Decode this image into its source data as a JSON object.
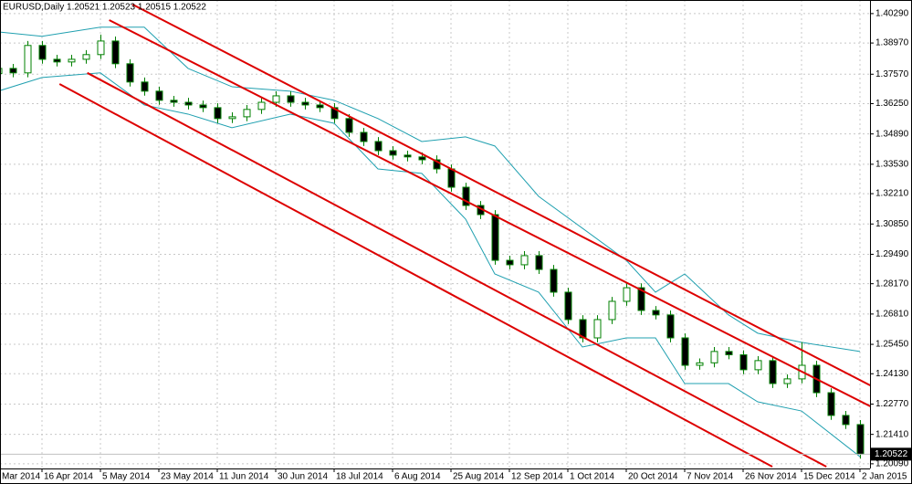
{
  "chart_data": {
    "type": "candlestick",
    "title": "EURUSD,Daily  1.20521 1.20523 1.20515 1.20522",
    "categories": [
      "Mar 2014",
      null,
      null,
      null,
      "16 Apr 2014",
      null,
      null,
      null,
      "5 May 2014",
      null,
      null,
      null,
      "23 May 2014",
      null,
      null,
      null,
      "11 Jun 2014",
      null,
      null,
      null,
      "30 Jun 2014",
      null,
      null,
      null,
      "18 Jul 2014",
      null,
      null,
      null,
      "6 Aug 2014",
      null,
      null,
      null,
      "25 Aug 2014",
      null,
      null,
      null,
      "12 Sep 2014",
      null,
      null,
      null,
      "1 Oct 2014",
      null,
      null,
      null,
      "20 Oct 2014",
      null,
      null,
      null,
      "7 Nov 2014",
      null,
      null,
      null,
      "26 Nov 2014",
      null,
      null,
      null,
      "15 Dec 2014",
      null,
      null,
      null,
      "2 Jan 2015"
    ],
    "open": [
      null,
      1.376,
      1.3783,
      1.3763,
      1.3886,
      1.3824,
      1.3812,
      1.3824,
      1.3845,
      1.3906,
      1.3804,
      1.3722,
      1.3681,
      1.364,
      1.3631,
      1.3619,
      1.3607,
      1.3558,
      1.3566,
      1.3599,
      1.3631,
      1.366,
      1.3631,
      1.3619,
      1.3607,
      1.3558,
      1.3496,
      1.3455,
      1.3414,
      1.3394,
      1.3386,
      1.3373,
      1.3332,
      1.325,
      1.3168,
      1.3127,
      1.2922,
      1.2902,
      1.2943,
      1.2881,
      1.2779,
      1.2656,
      1.2574,
      1.2656,
      1.2738,
      1.2799,
      1.2697,
      1.2677,
      1.2574,
      1.2451,
      1.2462,
      1.2513,
      1.2498,
      1.2431,
      1.2472,
      1.2369,
      1.239,
      1.2451,
      1.2328,
      1.2226,
      1.2185
    ],
    "high": [
      null,
      1.3803,
      1.3803,
      1.3906,
      1.3906,
      1.3844,
      1.3844,
      1.3865,
      1.3935,
      1.3926,
      1.3824,
      1.3742,
      1.3701,
      1.366,
      1.3651,
      1.3639,
      1.3627,
      1.3586,
      1.3619,
      1.3651,
      1.368,
      1.368,
      1.3651,
      1.3639,
      1.3627,
      1.3578,
      1.3516,
      1.3475,
      1.3434,
      1.3414,
      1.3406,
      1.3393,
      1.3352,
      1.327,
      1.3188,
      1.3147,
      1.2942,
      1.2963,
      1.2963,
      1.2901,
      1.2799,
      1.2676,
      1.2676,
      1.2758,
      1.2819,
      1.2819,
      1.2717,
      1.2697,
      1.2594,
      1.2482,
      1.2533,
      1.2533,
      1.2518,
      1.2492,
      1.2492,
      1.241,
      1.2555,
      1.2471,
      1.2348,
      1.2246,
      1.2205
    ],
    "low": [
      null,
      1.374,
      1.3743,
      1.3743,
      1.3804,
      1.3792,
      1.3792,
      1.3804,
      1.3825,
      1.3784,
      1.3702,
      1.3661,
      1.362,
      1.3611,
      1.3599,
      1.3587,
      1.3538,
      1.3538,
      1.3546,
      1.3579,
      1.3611,
      1.3611,
      1.3599,
      1.3587,
      1.3538,
      1.3476,
      1.3435,
      1.3394,
      1.3374,
      1.3366,
      1.3353,
      1.3312,
      1.323,
      1.3148,
      1.3107,
      1.2902,
      1.2882,
      1.2882,
      1.2861,
      1.2759,
      1.2636,
      1.2554,
      1.2554,
      1.2636,
      1.2718,
      1.2677,
      1.2657,
      1.2554,
      1.2431,
      1.2431,
      1.2442,
      1.2478,
      1.2411,
      1.2411,
      1.2349,
      1.2349,
      1.237,
      1.2308,
      1.2206,
      1.2165,
      1.2032
    ],
    "close": [
      null,
      1.3783,
      1.3763,
      1.3886,
      1.3824,
      1.3812,
      1.3824,
      1.3845,
      1.3906,
      1.3804,
      1.3722,
      1.3681,
      1.364,
      1.3631,
      1.3619,
      1.3607,
      1.3558,
      1.3566,
      1.3599,
      1.3631,
      1.366,
      1.3631,
      1.3619,
      1.3607,
      1.3558,
      1.3496,
      1.3455,
      1.3414,
      1.3394,
      1.3386,
      1.3373,
      1.3332,
      1.325,
      1.3168,
      1.3127,
      1.2922,
      1.2902,
      1.2943,
      1.2881,
      1.2779,
      1.2656,
      1.2574,
      1.2656,
      1.2738,
      1.2799,
      1.2697,
      1.2677,
      1.2574,
      1.2451,
      1.2462,
      1.2513,
      1.2498,
      1.2431,
      1.2472,
      1.2369,
      1.239,
      1.2451,
      1.2328,
      1.2226,
      1.2185,
      1.2052
    ],
    "up_color": "#ffffff",
    "down_color": "#000000",
    "wick_color": "#008000",
    "ylim": [
      1.1988,
      1.409
    ],
    "yticks": [
      {
        "value": 1.4029,
        "label": "1.40290"
      },
      {
        "value": 1.3897,
        "label": "1.38970"
      },
      {
        "value": 1.3757,
        "label": "1.37570"
      },
      {
        "value": 1.3625,
        "label": "1.36250"
      },
      {
        "value": 1.3489,
        "label": "1.34890"
      },
      {
        "value": 1.3353,
        "label": "1.33530"
      },
      {
        "value": 1.3221,
        "label": "1.32210"
      },
      {
        "value": 1.3085,
        "label": "1.30850"
      },
      {
        "value": 1.2949,
        "label": "1.29490"
      },
      {
        "value": 1.2817,
        "label": "1.28170"
      },
      {
        "value": 1.2681,
        "label": "1.26810"
      },
      {
        "value": 1.2545,
        "label": "1.25450"
      },
      {
        "value": 1.2413,
        "label": "1.24130"
      },
      {
        "value": 1.2277,
        "label": "1.22770"
      },
      {
        "value": 1.2141,
        "label": "1.21410"
      },
      {
        "value": 1.2009,
        "label": "1.20090"
      }
    ],
    "grid": true,
    "channels": {
      "color": "#dd0000",
      "lines": [
        {
          "x": [
            10.2,
            60.7
          ],
          "values": [
            1.407,
            1.2361
          ]
        },
        {
          "x": [
            8.6,
            60.7
          ],
          "values": [
            1.4,
            1.2267
          ]
        },
        {
          "x": [
            7.1,
            57.7
          ],
          "values": [
            1.3763,
            1.1996
          ]
        },
        {
          "x": [
            5.2,
            54.0
          ],
          "values": [
            1.3713,
            1.1996
          ]
        }
      ]
    },
    "bands": {
      "color": "#20a0b0",
      "x": [
        1,
        4,
        8,
        11,
        14,
        17,
        21,
        24,
        27,
        30,
        33,
        35,
        38,
        41,
        44,
        46,
        48,
        51,
        53,
        56,
        60
      ],
      "upper": [
        1.3947,
        1.3927,
        1.3968,
        1.3968,
        1.3783,
        1.3701,
        1.3681,
        1.364,
        1.3558,
        1.3455,
        1.3476,
        1.3435,
        1.3209,
        1.3066,
        1.2922,
        1.2779,
        1.2861,
        1.2677,
        1.2595,
        1.2554,
        1.2513
      ],
      "lower": [
        1.3681,
        1.3742,
        1.3763,
        1.3619,
        1.3578,
        1.3517,
        1.3578,
        1.3537,
        1.3332,
        1.3312,
        1.3107,
        1.2861,
        1.2779,
        1.2533,
        1.2574,
        1.2574,
        1.2369,
        1.2369,
        1.2287,
        1.2246,
        1.2041
      ]
    },
    "last_price": {
      "value": 1.20522,
      "label": "1.20522"
    }
  }
}
